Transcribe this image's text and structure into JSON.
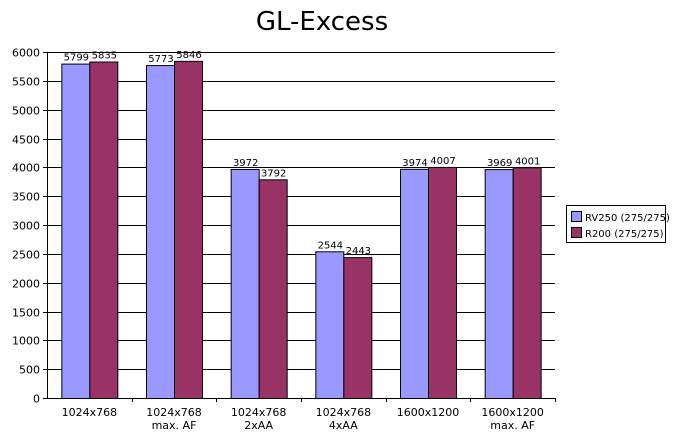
{
  "chart_data": {
    "type": "bar",
    "title": "GL-Excess",
    "xlabel": "",
    "ylabel": "",
    "ylim": [
      0,
      6000
    ],
    "ytick_step": 500,
    "grid": true,
    "legend_position": "right",
    "categories": [
      [
        "1024x768"
      ],
      [
        "1024x768",
        "max. AF"
      ],
      [
        "1024x768",
        "2xAA"
      ],
      [
        "1024x768",
        "4xAA"
      ],
      [
        "1600x1200"
      ],
      [
        "1600x1200",
        "max. AF"
      ]
    ],
    "series": [
      {
        "name": "RV250 (275/275)",
        "color": "#9999FF",
        "values": [
          5799,
          5773,
          3972,
          2544,
          3974,
          3969
        ]
      },
      {
        "name": "R200 (275/275)",
        "color": "#993366",
        "values": [
          5835,
          5846,
          3792,
          2443,
          4007,
          4001
        ]
      }
    ]
  }
}
